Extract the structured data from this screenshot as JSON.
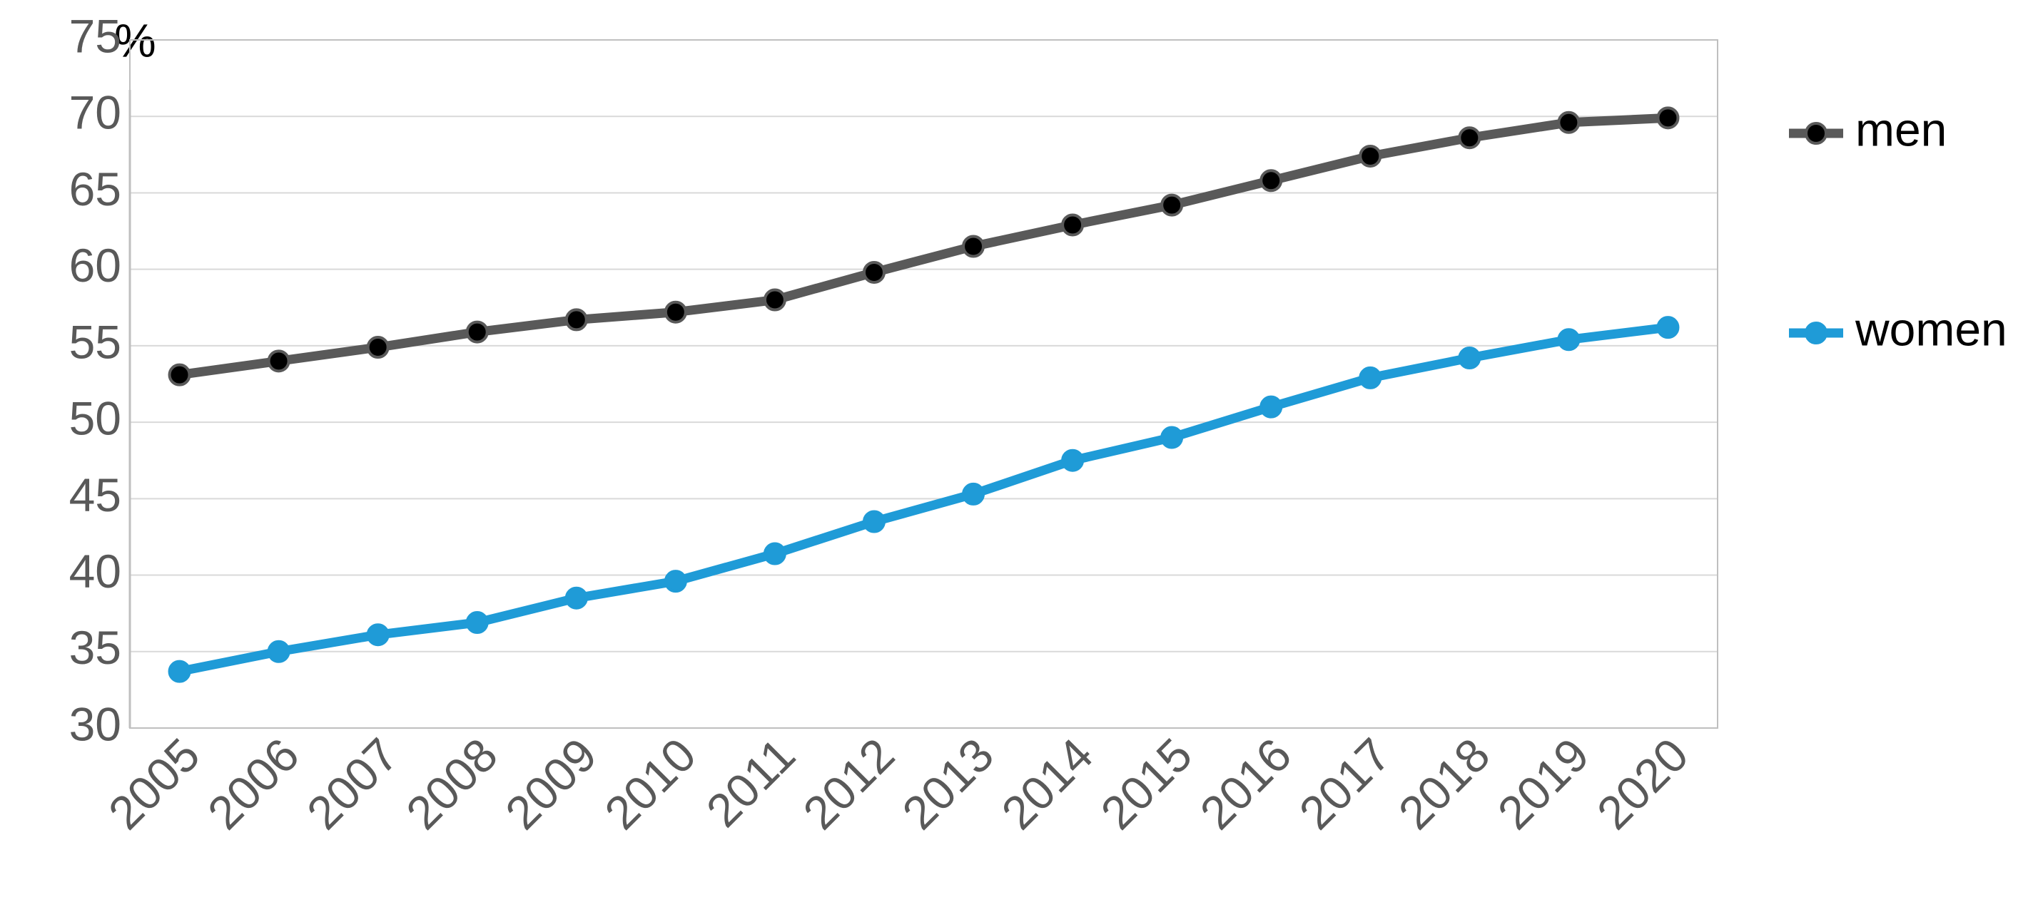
{
  "chart_data": {
    "type": "line",
    "y_label": "%",
    "categories": [
      "2005",
      "2006",
      "2007",
      "2008",
      "2009",
      "2010",
      "2011",
      "2012",
      "2013",
      "2014",
      "2015",
      "2016",
      "2017",
      "2018",
      "2019",
      "2020"
    ],
    "series": [
      {
        "name": "men",
        "color": "#595959",
        "marker_color": "#000000",
        "values": [
          53.1,
          54.0,
          54.9,
          55.9,
          56.7,
          57.2,
          58.0,
          59.8,
          61.5,
          62.9,
          64.2,
          65.8,
          67.4,
          68.6,
          69.6,
          69.9
        ]
      },
      {
        "name": "women",
        "color": "#1f9bd7",
        "marker_color": "#1f9bd7",
        "values": [
          33.7,
          35.0,
          36.1,
          36.9,
          38.5,
          39.6,
          41.4,
          43.5,
          45.3,
          47.5,
          49.0,
          51.0,
          52.9,
          54.2,
          55.4,
          56.2
        ]
      }
    ],
    "ylim": [
      30,
      75
    ],
    "yticks": [
      30,
      35,
      40,
      45,
      50,
      55,
      60,
      65,
      70,
      75
    ],
    "grid": true,
    "legend": "right"
  }
}
